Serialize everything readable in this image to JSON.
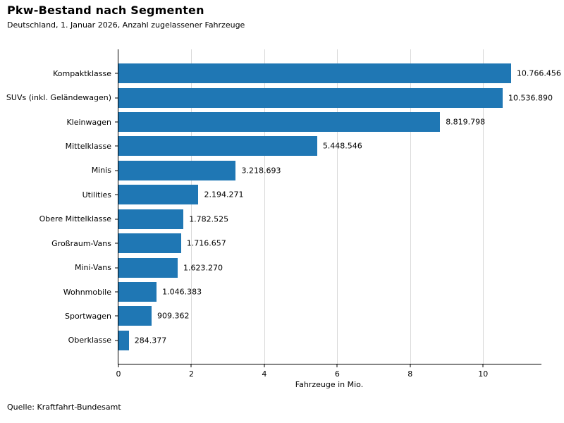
{
  "title": "Pkw-Bestand nach Segmenten",
  "subtitle": "Deutschland, 1. Januar 2026, Anzahl zugelassener Fahrzeuge",
  "source": "Quelle: Kraftfahrt-Bundesamt",
  "chart_data": {
    "type": "bar",
    "orientation": "horizontal",
    "title": "Pkw-Bestand nach Segmenten",
    "subtitle": "Deutschland, 1. Januar 2026, Anzahl zugelassener Fahrzeuge",
    "xlabel": "Fahrzeuge in Mio.",
    "categories": [
      "Kompaktklasse",
      "SUVs (inkl. Geländewagen)",
      "Kleinwagen",
      "Mittelklasse",
      "Minis",
      "Utilities",
      "Obere Mittelklasse",
      "Großraum-Vans",
      "Mini-Vans",
      "Wohnmobile",
      "Sportwagen",
      "Oberklasse"
    ],
    "values": [
      10766456,
      10536890,
      8819798,
      5448546,
      3218693,
      2194271,
      1782525,
      1716657,
      1623270,
      1046383,
      909362,
      284377
    ],
    "value_labels": [
      "10.766.456",
      "10.536.890",
      "8.819.798",
      "5.448.546",
      "3.218.693",
      "2.194.271",
      "1.782.525",
      "1.716.657",
      "1.623.270",
      "1.046.383",
      "909.362",
      "284.377"
    ],
    "x_ticks": [
      0,
      2,
      4,
      6,
      8,
      10
    ],
    "xlim": [
      0,
      11.6
    ],
    "bar_color": "#1f77b4",
    "grid": "vertical",
    "grid_color": "#d9d9d9",
    "legend": "none",
    "source": "Quelle: Kraftfahrt-Bundesamt"
  }
}
